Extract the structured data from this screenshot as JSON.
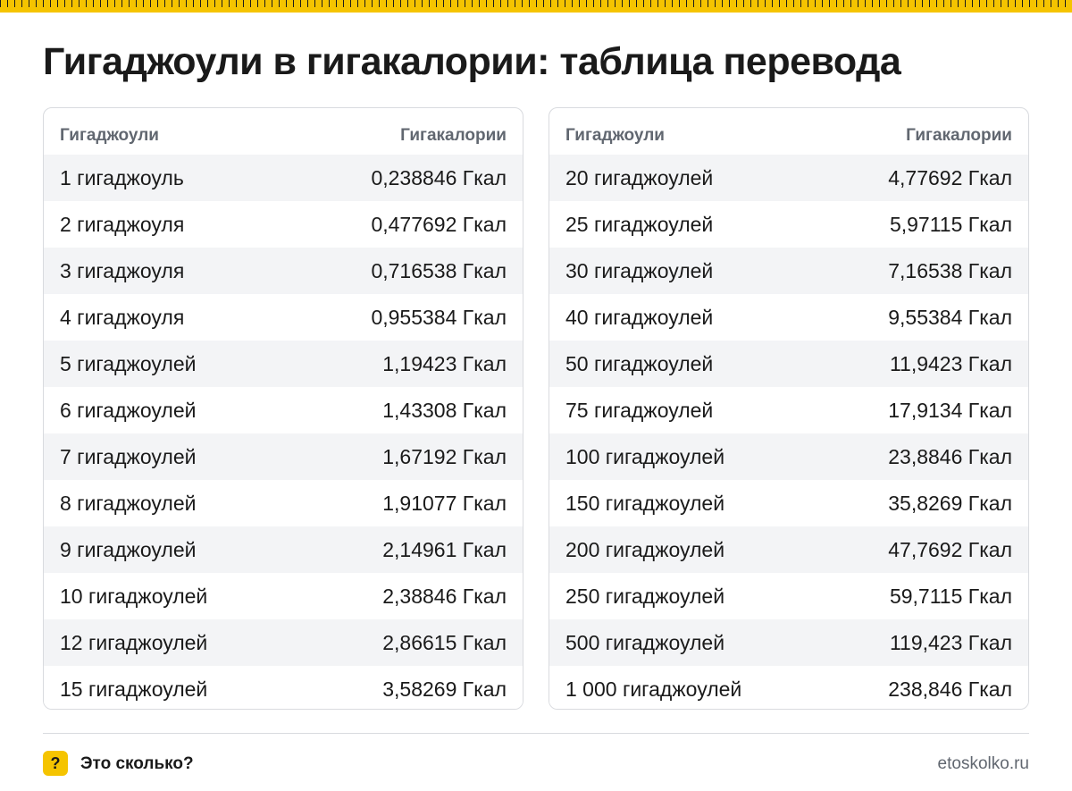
{
  "title": "Гигаджоули в гигакалории: таблица перевода",
  "table_left": {
    "headers": {
      "col1": "Гигаджоули",
      "col2": "Гигакалории"
    },
    "rows": [
      {
        "gj": "1 гигаджоуль",
        "gcal": "0,238846 Гкал"
      },
      {
        "gj": "2 гигаджоуля",
        "gcal": "0,477692 Гкал"
      },
      {
        "gj": "3 гигаджоуля",
        "gcal": "0,716538 Гкал"
      },
      {
        "gj": "4 гигаджоуля",
        "gcal": "0,955384 Гкал"
      },
      {
        "gj": "5 гигаджоулей",
        "gcal": "1,19423 Гкал"
      },
      {
        "gj": "6 гигаджоулей",
        "gcal": "1,43308 Гкал"
      },
      {
        "gj": "7 гигаджоулей",
        "gcal": "1,67192 Гкал"
      },
      {
        "gj": "8 гигаджоулей",
        "gcal": "1,91077 Гкал"
      },
      {
        "gj": "9 гигаджоулей",
        "gcal": "2,14961 Гкал"
      },
      {
        "gj": "10 гигаджоулей",
        "gcal": "2,38846 Гкал"
      },
      {
        "gj": "12 гигаджоулей",
        "gcal": "2,86615 Гкал"
      },
      {
        "gj": "15 гигаджоулей",
        "gcal": "3,58269 Гкал"
      }
    ]
  },
  "table_right": {
    "headers": {
      "col1": "Гигаджоули",
      "col2": "Гигакалории"
    },
    "rows": [
      {
        "gj": "20 гигаджоулей",
        "gcal": "4,77692 Гкал"
      },
      {
        "gj": "25 гигаджоулей",
        "gcal": "5,97115 Гкал"
      },
      {
        "gj": "30 гигаджоулей",
        "gcal": "7,16538 Гкал"
      },
      {
        "gj": "40 гигаджоулей",
        "gcal": "9,55384 Гкал"
      },
      {
        "gj": "50 гигаджоулей",
        "gcal": "11,9423 Гкал"
      },
      {
        "gj": "75 гигаджоулей",
        "gcal": "17,9134 Гкал"
      },
      {
        "gj": "100 гигаджоулей",
        "gcal": "23,8846 Гкал"
      },
      {
        "gj": "150 гигаджоулей",
        "gcal": "35,8269 Гкал"
      },
      {
        "gj": "200 гигаджоулей",
        "gcal": "47,7692 Гкал"
      },
      {
        "gj": "250 гигаджоулей",
        "gcal": "59,7115 Гкал"
      },
      {
        "gj": "500 гигаджоулей",
        "gcal": "119,423 Гкал"
      },
      {
        "gj": "1 000 гигаджоулей",
        "gcal": "238,846 Гкал"
      }
    ]
  },
  "footer": {
    "badge_icon": "question-mark-icon",
    "badge_glyph": "?",
    "brand": "Это сколько?",
    "site": "etoskolko.ru"
  },
  "colors": {
    "accent": "#f5c400",
    "text": "#1a1a1a",
    "muted": "#616770",
    "stripe": "#f3f4f6",
    "border": "#d9dbdf"
  }
}
